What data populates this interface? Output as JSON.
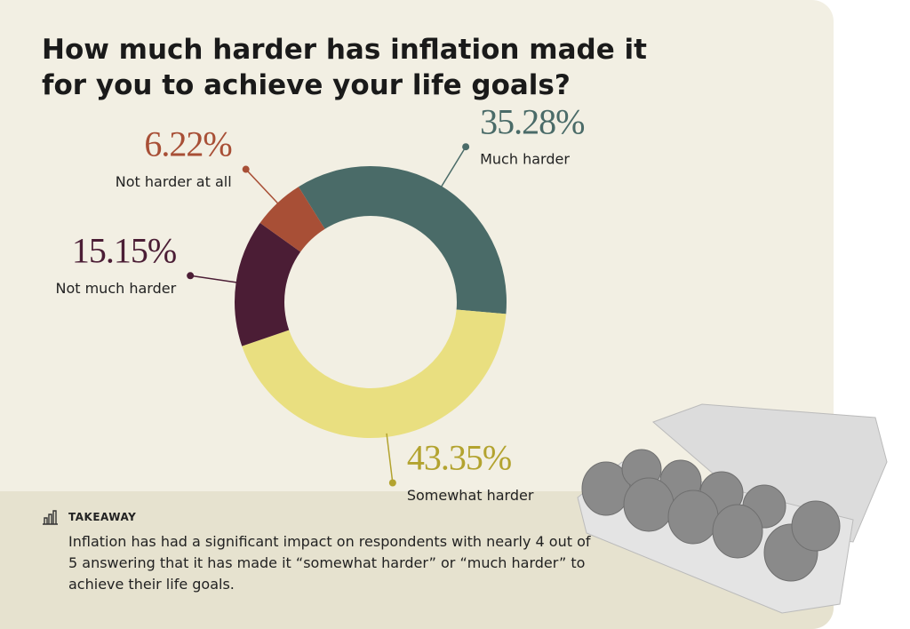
{
  "chart_data": {
    "type": "donut",
    "title": "How much harder has inflation made it for you to achieve your life goals?",
    "categories": [
      "Much harder",
      "Somewhat harder",
      "Not much harder",
      "Not harder at all"
    ],
    "values": [
      35.28,
      43.35,
      15.15,
      6.22
    ],
    "value_labels": [
      "35.28%",
      "43.35%",
      "15.15%",
      "6.22%"
    ],
    "colors": [
      "#4a6b68",
      "#e9df80",
      "#4b1d35",
      "#a84f36"
    ],
    "label_colors": [
      "#4a6b68",
      "#b3a32f",
      "#4b1d35",
      "#a84f36"
    ]
  },
  "takeaway": {
    "heading": "TAKEAWAY",
    "text": "Inflation has had a significant impact on respondents with nearly 4 out of 5 answering that it has made it “somewhat harder” or “much harder” to achieve their life goals."
  }
}
